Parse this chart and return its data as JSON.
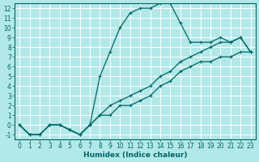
{
  "xlabel": "Humidex (Indice chaleur)",
  "bg_color": "#b3e8e8",
  "grid_color": "#ffffff",
  "line_color": "#006666",
  "xlim": [
    -0.5,
    23.5
  ],
  "ylim": [
    -1.5,
    12.5
  ],
  "xticks": [
    0,
    1,
    2,
    3,
    4,
    5,
    6,
    7,
    8,
    9,
    10,
    11,
    12,
    13,
    14,
    15,
    16,
    17,
    18,
    19,
    20,
    21,
    22,
    23
  ],
  "yticks": [
    -1,
    0,
    1,
    2,
    3,
    4,
    5,
    6,
    7,
    8,
    9,
    10,
    11,
    12
  ],
  "series1_x": [
    0,
    1,
    2,
    3,
    4,
    5,
    6,
    7,
    8,
    9,
    10,
    11,
    12,
    13,
    14,
    15,
    16,
    17,
    18,
    19,
    20,
    21,
    22,
    23
  ],
  "series1_y": [
    0,
    -1,
    -1,
    0,
    0,
    -0.5,
    -1,
    0,
    1,
    1,
    2,
    2,
    2.5,
    3,
    4,
    4.5,
    5.5,
    6,
    6.5,
    6.5,
    7,
    7,
    7.5,
    7.5
  ],
  "series2_x": [
    0,
    1,
    2,
    3,
    4,
    5,
    6,
    7,
    8,
    9,
    10,
    11,
    12,
    13,
    14,
    15,
    16,
    17,
    18,
    19,
    20,
    21,
    22,
    23
  ],
  "series2_y": [
    0,
    -1,
    -1,
    0,
    0,
    -0.5,
    -1,
    0,
    1,
    2,
    2.5,
    3,
    3.5,
    4,
    5,
    5.5,
    6.5,
    7,
    7.5,
    8,
    8.5,
    8.5,
    9,
    7.5
  ],
  "series3_x": [
    0,
    1,
    2,
    3,
    4,
    5,
    6,
    7,
    8,
    9,
    10,
    11,
    12,
    13,
    14,
    15,
    16,
    17,
    18,
    19,
    20,
    21,
    22,
    23
  ],
  "series3_y": [
    0,
    -1,
    -1,
    0,
    0,
    -0.5,
    -1,
    0,
    5,
    7.5,
    10,
    11.5,
    12,
    12,
    12.5,
    12.5,
    10.5,
    8.5,
    8.5,
    8.5,
    9,
    8.5,
    9,
    7.5
  ],
  "tick_fontsize": 5.5,
  "xlabel_fontsize": 6.5
}
